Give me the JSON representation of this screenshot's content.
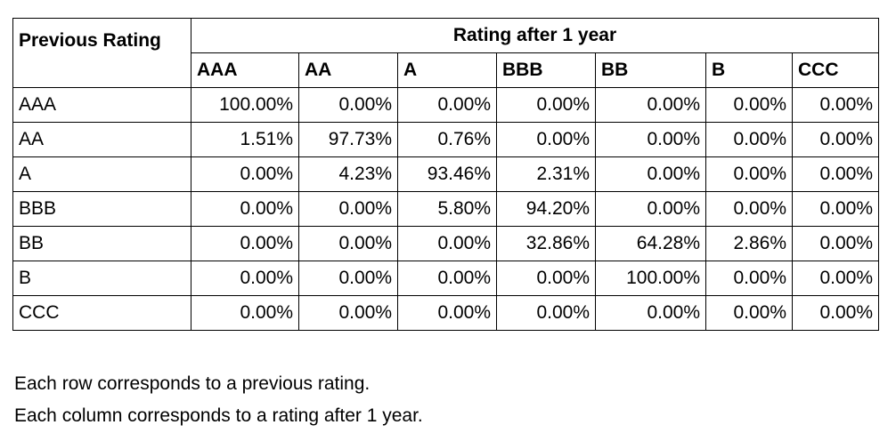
{
  "table": {
    "corner_label": "Previous Rating",
    "group_header": "Rating after 1 year",
    "columns": [
      "AAA",
      "AA",
      "A",
      "BBB",
      "BB",
      "B",
      "CCC"
    ],
    "rows": [
      {
        "label": "AAA",
        "values": [
          "100.00%",
          "0.00%",
          "0.00%",
          "0.00%",
          "0.00%",
          "0.00%",
          "0.00%"
        ]
      },
      {
        "label": "AA",
        "values": [
          "1.51%",
          "97.73%",
          "0.76%",
          "0.00%",
          "0.00%",
          "0.00%",
          "0.00%"
        ]
      },
      {
        "label": "A",
        "values": [
          "0.00%",
          "4.23%",
          "93.46%",
          "2.31%",
          "0.00%",
          "0.00%",
          "0.00%"
        ]
      },
      {
        "label": "BBB",
        "values": [
          "0.00%",
          "0.00%",
          "5.80%",
          "94.20%",
          "0.00%",
          "0.00%",
          "0.00%"
        ]
      },
      {
        "label": "BB",
        "values": [
          "0.00%",
          "0.00%",
          "0.00%",
          "32.86%",
          "64.28%",
          "2.86%",
          "0.00%"
        ]
      },
      {
        "label": "B",
        "values": [
          "0.00%",
          "0.00%",
          "0.00%",
          "0.00%",
          "100.00%",
          "0.00%",
          "0.00%"
        ]
      },
      {
        "label": "CCC",
        "values": [
          "0.00%",
          "0.00%",
          "0.00%",
          "0.00%",
          "0.00%",
          "0.00%",
          "0.00%"
        ]
      }
    ]
  },
  "notes": {
    "line1": "Each row corresponds to a previous rating.",
    "line2": "Each column corresponds to a rating after 1 year."
  }
}
